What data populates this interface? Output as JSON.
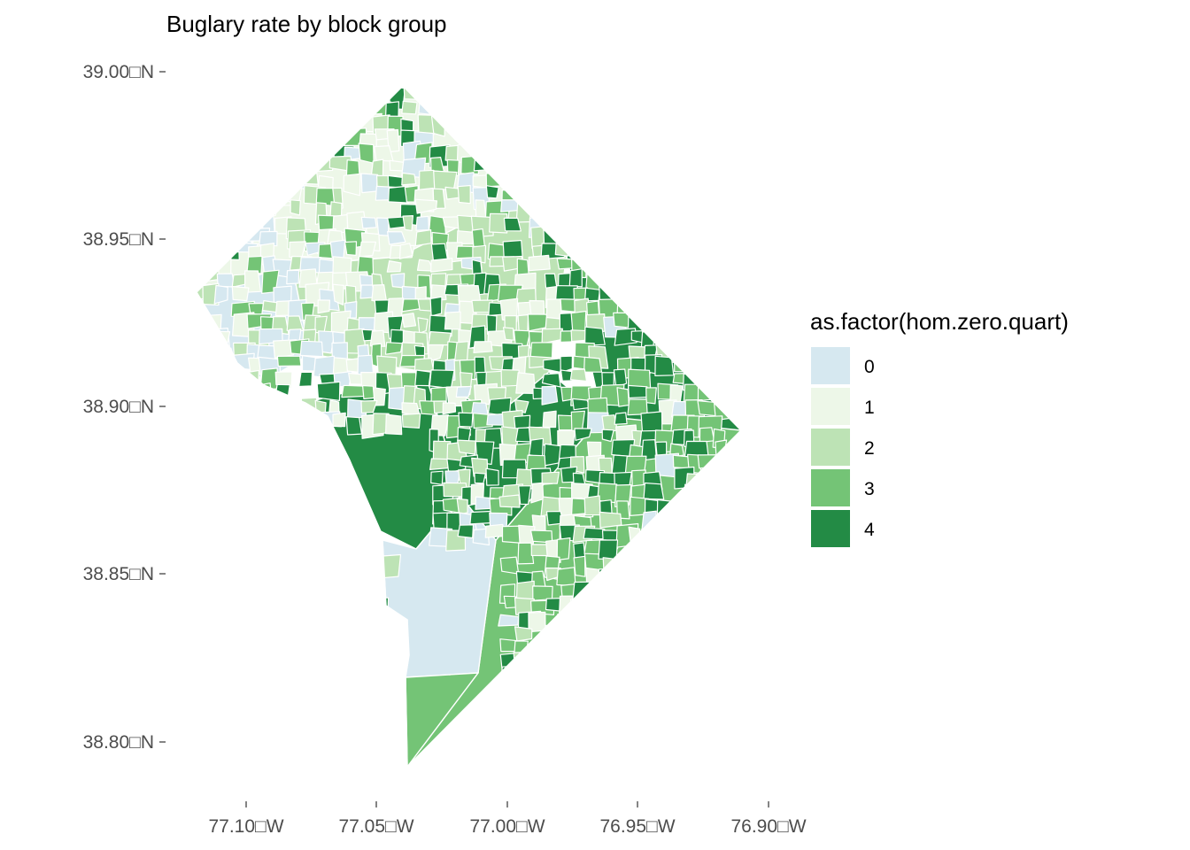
{
  "title": "Buglary rate by block group",
  "axes": {
    "y_ticks": [
      "38.80□N",
      "38.85□N",
      "38.90□N",
      "38.95□N",
      "39.00□N"
    ],
    "x_ticks": [
      "77.10□W",
      "77.05□W",
      "77.00□W",
      "76.95□W",
      "76.90□W"
    ]
  },
  "legend": {
    "title": "as.factor(hom.zero.quart)",
    "items": [
      {
        "label": "0",
        "color": "#d6e8f0"
      },
      {
        "label": "1",
        "color": "#edf7e8"
      },
      {
        "label": "2",
        "color": "#bde3b5"
      },
      {
        "label": "3",
        "color": "#74c476"
      },
      {
        "label": "4",
        "color": "#238b45"
      }
    ]
  },
  "map": {
    "region": "Washington, DC",
    "unit": "block group",
    "fill_variable": "as.factor(hom.zero.quart)"
  }
}
